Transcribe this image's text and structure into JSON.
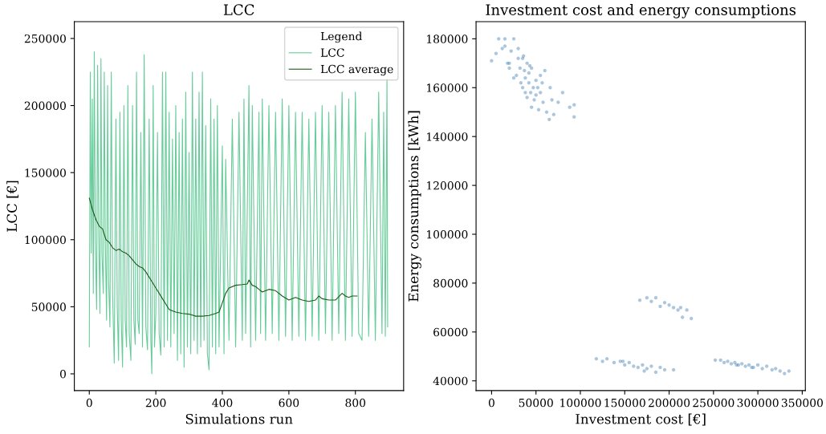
{
  "chart_data": [
    {
      "type": "line",
      "title": "LCC",
      "xlabel": "Simulations run",
      "ylabel": "LCC [€]",
      "legend_title": "Legend",
      "legend": "top right",
      "grid": false,
      "xlim": [
        -45,
        945
      ],
      "xticks": [
        0,
        200,
        400,
        600,
        800
      ],
      "ylim": [
        -12500,
        262500
      ],
      "yticks": [
        0,
        50000,
        100000,
        150000,
        200000,
        250000
      ],
      "series": [
        {
          "name": "LCC",
          "color": "#66cc99",
          "x": [
            0,
            3,
            6,
            9,
            12,
            15,
            18,
            22,
            25,
            28,
            32,
            35,
            38,
            42,
            45,
            48,
            52,
            55,
            58,
            62,
            66,
            70,
            75,
            80,
            84,
            88,
            92,
            96,
            100,
            104,
            108,
            112,
            116,
            120,
            125,
            130,
            134,
            138,
            142,
            146,
            150,
            155,
            160,
            165,
            170,
            175,
            180,
            185,
            188,
            192,
            196,
            200,
            205,
            210,
            215,
            220,
            225,
            230,
            235,
            240,
            245,
            250,
            255,
            260,
            265,
            270,
            275,
            280,
            285,
            290,
            295,
            300,
            305,
            310,
            315,
            320,
            325,
            330,
            335,
            340,
            345,
            350,
            355,
            360,
            365,
            370,
            375,
            380,
            385,
            390,
            400,
            405,
            410,
            420,
            430,
            440,
            450,
            460,
            465,
            470,
            480,
            485,
            490,
            500,
            510,
            515,
            520,
            530,
            540,
            550,
            560,
            570,
            580,
            590,
            600,
            610,
            620,
            630,
            640,
            650,
            660,
            670,
            680,
            690,
            700,
            710,
            720,
            730,
            740,
            750,
            760,
            770,
            780,
            790,
            800,
            810,
            820,
            830,
            840,
            850,
            860,
            870,
            880,
            885,
            890,
            895,
            897
          ],
          "values": [
            20000,
            225000,
            90000,
            205000,
            60000,
            240000,
            100000,
            48000,
            230000,
            110000,
            45000,
            235000,
            90000,
            60000,
            225000,
            100000,
            40000,
            215000,
            70000,
            35000,
            225000,
            60000,
            8000,
            190000,
            50000,
            10000,
            195000,
            40000,
            5000,
            200000,
            40000,
            20000,
            215000,
            30000,
            10000,
            200000,
            40000,
            22000,
            225000,
            40000,
            30000,
            180000,
            20000,
            238000,
            35000,
            18000,
            190000,
            25000,
            0,
            215000,
            20000,
            45000,
            180000,
            30000,
            14000,
            225000,
            20000,
            225000,
            25000,
            195000,
            20000,
            175000,
            30000,
            200000,
            10000,
            180000,
            15000,
            190000,
            5000,
            210000,
            20000,
            165000,
            15000,
            225000,
            25000,
            190000,
            15000,
            210000,
            20000,
            225000,
            25000,
            185000,
            15000,
            3000,
            205000,
            20000,
            190000,
            15000,
            200000,
            20000,
            170000,
            15000,
            160000,
            25000,
            190000,
            20000,
            195000,
            25000,
            205000,
            30000,
            215000,
            20000,
            200000,
            25000,
            195000,
            30000,
            205000,
            25000,
            200000,
            30000,
            195000,
            25000,
            205000,
            28000,
            200000,
            25000,
            195000,
            28000,
            195000,
            25000,
            190000,
            28000,
            195000,
            25000,
            200000,
            30000,
            195000,
            25000,
            200000,
            30000,
            210000,
            25000,
            205000,
            28000,
            210000,
            30000,
            25000,
            180000,
            28000,
            190000,
            25000,
            210000,
            30000,
            195000,
            28000,
            220000,
            35000
          ]
        },
        {
          "name": "LCC average",
          "color": "#1a5c1a",
          "x": [
            0,
            10,
            20,
            30,
            40,
            50,
            60,
            70,
            80,
            90,
            100,
            110,
            120,
            130,
            140,
            150,
            160,
            170,
            180,
            190,
            200,
            210,
            220,
            230,
            240,
            250,
            260,
            280,
            300,
            320,
            340,
            360,
            380,
            390,
            400,
            410,
            420,
            440,
            460,
            475,
            480,
            490,
            500,
            510,
            520,
            540,
            560,
            580,
            600,
            620,
            640,
            660,
            680,
            690,
            700,
            720,
            740,
            760,
            770,
            780,
            790,
            805
          ],
          "values": [
            131000,
            122000,
            115000,
            110000,
            108000,
            100000,
            98000,
            94000,
            92000,
            93000,
            91000,
            90000,
            88000,
            85000,
            82000,
            80000,
            79000,
            76000,
            72000,
            68000,
            64000,
            60000,
            56000,
            52000,
            48000,
            47000,
            46000,
            45000,
            44500,
            43000,
            43000,
            43500,
            45000,
            46000,
            53000,
            60000,
            64000,
            66000,
            66500,
            67000,
            70000,
            66000,
            65000,
            63000,
            61000,
            63000,
            62000,
            58000,
            55000,
            57000,
            55000,
            54000,
            55000,
            58000,
            56000,
            55000,
            55000,
            60000,
            58000,
            57000,
            58000,
            58000
          ]
        }
      ]
    },
    {
      "type": "scatter",
      "title": "Investment cost and energy consumptions",
      "xlabel": "Investment cost [€]",
      "ylabel": "Energy consumptions [kWh]",
      "grid": false,
      "xlim": [
        -17500,
        353500
      ],
      "xticks": [
        0,
        50000,
        100000,
        150000,
        200000,
        250000,
        300000,
        350000
      ],
      "ylim": [
        36000,
        187000
      ],
      "yticks": [
        40000,
        60000,
        80000,
        100000,
        120000,
        140000,
        160000,
        180000
      ],
      "series": [
        {
          "color": "#4682b4",
          "x": [
            0,
            5000,
            8000,
            12000,
            15000,
            18000,
            20000,
            22000,
            25000,
            28000,
            30000,
            30000,
            32000,
            33000,
            35000,
            35000,
            37000,
            38000,
            38000,
            40000,
            40000,
            42000,
            42000,
            44000,
            45000,
            45000,
            47000,
            48000,
            50000,
            50000,
            52000,
            53000,
            55000,
            55000,
            58000,
            60000,
            62000,
            65000,
            66000,
            68000,
            70000,
            75000,
            80000,
            88000,
            93000,
            93000,
            25000,
            20000,
            15000,
            36000,
            43000,
            57000,
            167000,
            175000,
            180000,
            185000,
            190000,
            195000,
            200000,
            205000,
            210000,
            215000,
            220000,
            225000,
            213000,
            118000,
            125000,
            130000,
            138000,
            145000,
            150000,
            155000,
            160000,
            165000,
            170000,
            175000,
            180000,
            185000,
            190000,
            195000,
            205000,
            148000,
            172000,
            252000,
            258000,
            262000,
            266000,
            270000,
            274000,
            278000,
            282000,
            286000,
            290000,
            295000,
            300000,
            305000,
            310000,
            316000,
            320000,
            325000,
            330000,
            335000,
            276000,
            293000
          ],
          "values": [
            171000,
            174000,
            180000,
            176000,
            180000,
            170000,
            168000,
            175000,
            180000,
            165000,
            172000,
            176000,
            168000,
            162000,
            172000,
            160000,
            167000,
            158000,
            164000,
            170000,
            156000,
            162000,
            166000,
            158000,
            152000,
            168000,
            160000,
            155000,
            163000,
            157000,
            160000,
            151000,
            158000,
            165000,
            154000,
            167000,
            150000,
            147000,
            160000,
            155000,
            149000,
            154000,
            158000,
            152000,
            153000,
            148000,
            164000,
            170000,
            177000,
            173000,
            169000,
            162000,
            73000,
            74000,
            72500,
            74000,
            70500,
            72000,
            71000,
            70000,
            69000,
            66000,
            69000,
            65500,
            70000,
            49000,
            48000,
            49000,
            47500,
            48000,
            46500,
            47500,
            46000,
            45500,
            46500,
            45000,
            46000,
            43500,
            45500,
            44500,
            44500,
            48000,
            44000,
            48500,
            48500,
            47500,
            48000,
            47000,
            47500,
            46500,
            47000,
            46000,
            46500,
            45500,
            46500,
            45000,
            46000,
            44500,
            45000,
            44000,
            43000,
            44000,
            46500,
            45500
          ]
        }
      ]
    }
  ]
}
